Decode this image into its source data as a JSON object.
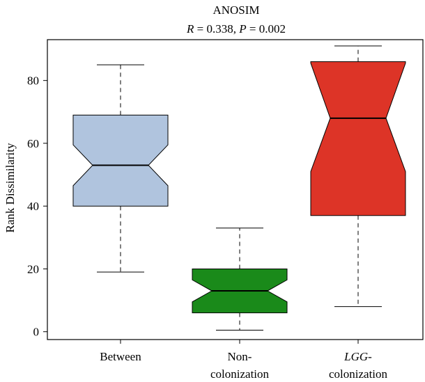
{
  "chart_data": {
    "type": "boxplot",
    "title": "ANOSIM",
    "subtitle": {
      "r_var": "R",
      "r_text": " = 0.338, ",
      "p_var": "P",
      "p_text": " = 0.002"
    },
    "ylabel": "Rank Dissimilarity",
    "ylim": [
      -2.5,
      93
    ],
    "yticks": [
      0,
      20,
      40,
      60,
      80
    ],
    "notched": true,
    "grid": false,
    "categories": [
      {
        "lines": [
          {
            "parts": [
              {
                "text": "Between",
                "italic": false
              }
            ]
          }
        ]
      },
      {
        "lines": [
          {
            "parts": [
              {
                "text": "Non-",
                "italic": false
              }
            ]
          },
          {
            "parts": [
              {
                "text": "colonization",
                "italic": false
              }
            ]
          }
        ]
      },
      {
        "lines": [
          {
            "parts": [
              {
                "text": "LGG",
                "italic": true
              },
              {
                "text": "-",
                "italic": false
              }
            ]
          },
          {
            "parts": [
              {
                "text": "colonization",
                "italic": false
              }
            ]
          }
        ]
      }
    ],
    "boxes": [
      {
        "whisker_low": 19,
        "q1": 40,
        "notch_low": 46.5,
        "median": 53,
        "notch_high": 59.5,
        "q3": 69,
        "whisker_high": 85,
        "color": "#b0c4de"
      },
      {
        "whisker_low": 0.5,
        "q1": 6,
        "notch_low": 9.5,
        "median": 13,
        "notch_high": 16.5,
        "q3": 20,
        "whisker_high": 33,
        "color": "#1a8a1a"
      },
      {
        "whisker_low": 8,
        "q1": 37,
        "notch_low": 51,
        "median": 68,
        "notch_high": 85.5,
        "q3": 86,
        "whisker_high": 91,
        "color": "#dd3427"
      }
    ]
  }
}
